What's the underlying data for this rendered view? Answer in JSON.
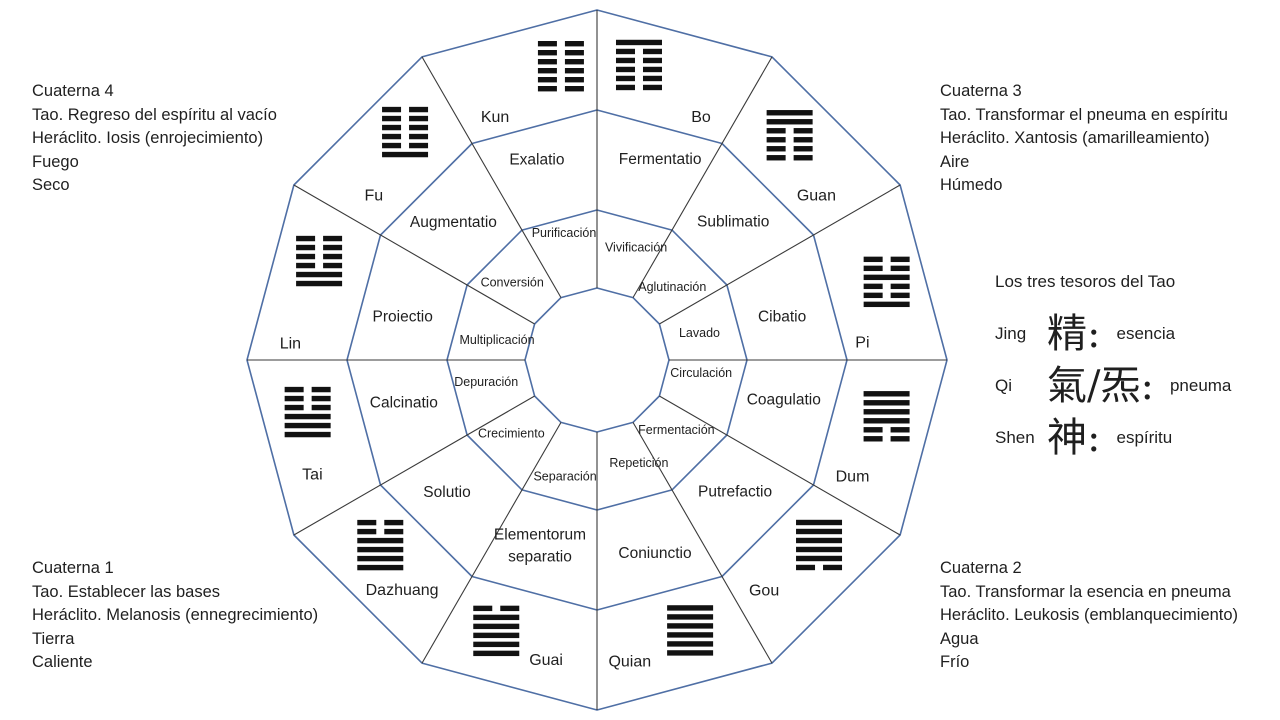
{
  "wheel": {
    "sectors": [
      {
        "hexagram": "Kun",
        "lines": [
          "broken",
          "broken",
          "broken",
          "broken",
          "broken",
          "broken"
        ],
        "operation": "Exalatio",
        "inner_term": "Purificación"
      },
      {
        "hexagram": "Bo",
        "lines": [
          "solid",
          "broken",
          "broken",
          "broken",
          "broken",
          "broken"
        ],
        "operation": "Fermentatio",
        "inner_term": "Vivificación"
      },
      {
        "hexagram": "Guan",
        "lines": [
          "solid",
          "solid",
          "broken",
          "broken",
          "broken",
          "broken"
        ],
        "operation": "Sublimatio",
        "inner_term": "Aglutinación"
      },
      {
        "hexagram": "Pi",
        "lines": [
          "broken",
          "broken",
          "solid",
          "broken",
          "broken",
          "solid"
        ],
        "operation": "Cibatio",
        "inner_term": "Lavado"
      },
      {
        "hexagram": "Dum",
        "lines": [
          "solid",
          "solid",
          "solid",
          "solid",
          "broken",
          "broken"
        ],
        "operation": "Coagulatio",
        "inner_term": "Circulación"
      },
      {
        "hexagram": "Gou",
        "lines": [
          "solid",
          "solid",
          "solid",
          "solid",
          "solid",
          "broken"
        ],
        "operation": "Putrefactio",
        "inner_term": "Fermentación"
      },
      {
        "hexagram": "Quian",
        "lines": [
          "solid",
          "solid",
          "solid",
          "solid",
          "solid",
          "solid"
        ],
        "operation": "Coniunctio",
        "inner_term": "Repetición"
      },
      {
        "hexagram": "Guai",
        "lines": [
          "broken",
          "solid",
          "solid",
          "solid",
          "solid",
          "solid"
        ],
        "operation": "Elementorum separatio",
        "inner_term": "Separación"
      },
      {
        "hexagram": "Dazhuang",
        "lines": [
          "broken",
          "broken",
          "solid",
          "solid",
          "solid",
          "solid"
        ],
        "operation": "Solutio",
        "inner_term": "Crecimiento"
      },
      {
        "hexagram": "Tai",
        "lines": [
          "broken",
          "broken",
          "broken",
          "solid",
          "solid",
          "solid"
        ],
        "operation": "Calcinatio",
        "inner_term": "Depuración"
      },
      {
        "hexagram": "Lin",
        "lines": [
          "broken",
          "broken",
          "broken",
          "broken",
          "solid",
          "solid"
        ],
        "operation": "Proiectio",
        "inner_term": "Multiplicación"
      },
      {
        "hexagram": "Fu",
        "lines": [
          "broken",
          "broken",
          "broken",
          "broken",
          "broken",
          "solid"
        ],
        "operation": "Augmentatio",
        "inner_term": "Conversión"
      }
    ]
  },
  "corners": {
    "cuaterna4": {
      "lines": [
        "Cuaterna 4",
        "Tao. Regreso del espíritu al vacío",
        "Heráclito. Iosis (enrojecimiento)",
        "Fuego",
        "Seco"
      ]
    },
    "cuaterna3": {
      "lines": [
        "Cuaterna 3",
        "Tao. Transformar el pneuma en espíritu",
        "Heráclito. Xantosis (amarilleamiento)",
        "Aire",
        "Húmedo"
      ]
    },
    "cuaterna1": {
      "lines": [
        "Cuaterna 1",
        "Tao. Establecer las bases",
        "Heráclito. Melanosis (ennegrecimiento)",
        "Tierra",
        "Caliente"
      ]
    },
    "cuaterna2": {
      "lines": [
        "Cuaterna 2",
        "Tao. Transformar la esencia en pneuma",
        "Heráclito. Leukosis (emblanquecimiento)",
        "Agua",
        "Frío"
      ]
    }
  },
  "treasures": {
    "title": "Los tres tesoros del Tao",
    "items": [
      {
        "name": "Jing",
        "hanzi": "精:",
        "meaning": "esencia"
      },
      {
        "name": "Qi",
        "hanzi": "氣/炁:",
        "meaning": "pneuma"
      },
      {
        "name": "Shen",
        "hanzi": "神:",
        "meaning": "espíritu"
      }
    ]
  },
  "colors": {
    "ring_stroke": "#4f6fa5",
    "divider_stroke": "#3a3a3a",
    "hexagram_bar": "#121212",
    "text": "#1f1f1f"
  }
}
